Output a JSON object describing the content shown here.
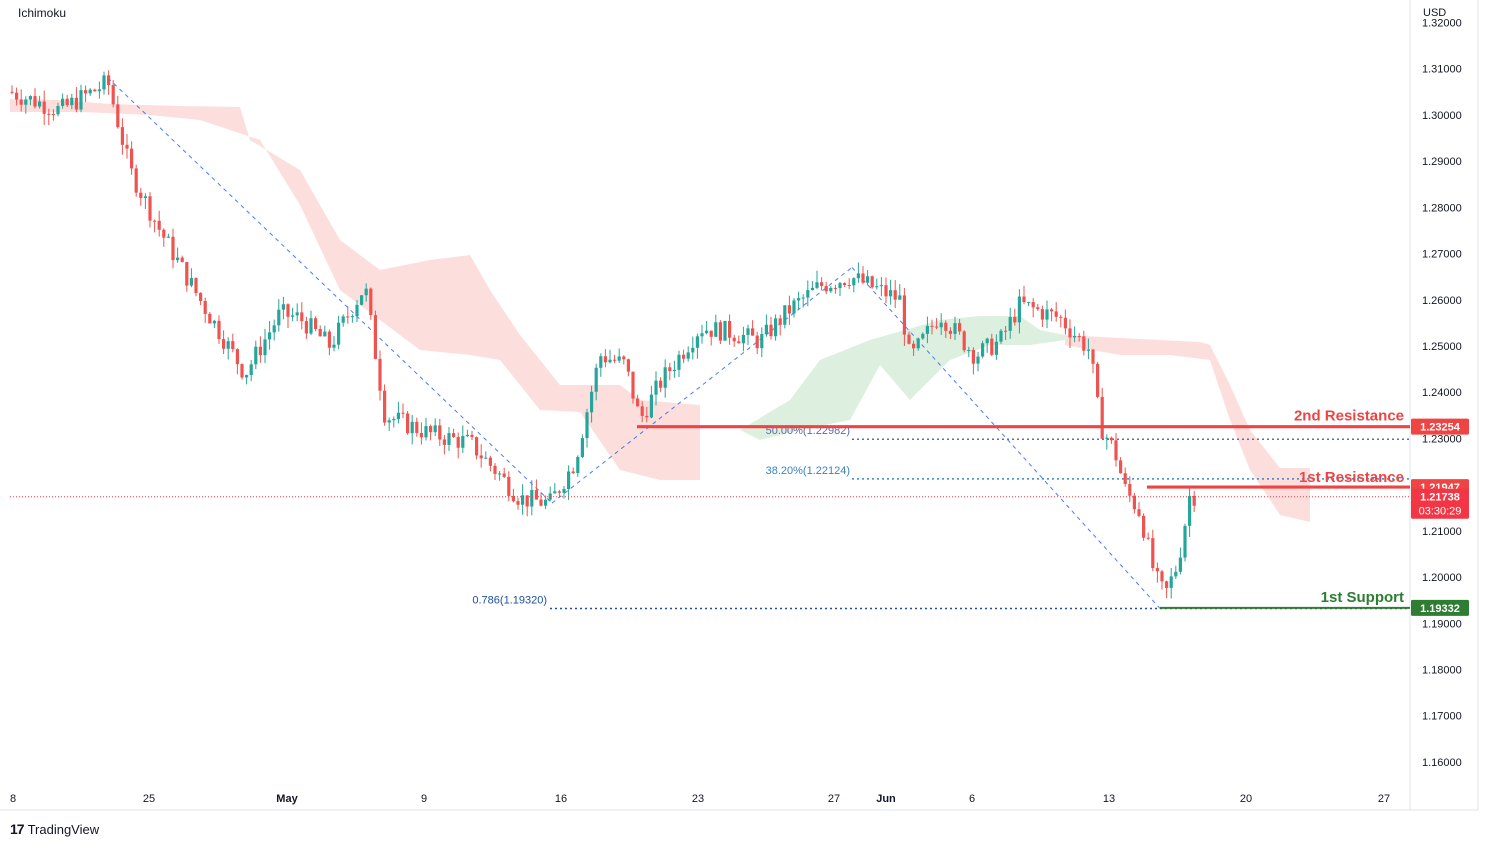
{
  "indicator_label": "Ichimoku",
  "currency": "USD",
  "brand": "TradingView",
  "brand_logo": "17",
  "chart_data": {
    "type": "candlestick",
    "ylim": [
      1.155,
      1.324
    ],
    "y_ticks": [
      "1.32000",
      "1.31000",
      "1.30000",
      "1.29000",
      "1.28000",
      "1.27000",
      "1.26000",
      "1.25000",
      "1.24000",
      "1.23000",
      "1.22000",
      "1.21000",
      "1.20000",
      "1.19000",
      "1.18000",
      "1.17000",
      "1.16000"
    ],
    "x_ticks": [
      {
        "label": "8",
        "bold": false
      },
      {
        "label": "25",
        "bold": false
      },
      {
        "label": "May",
        "bold": true
      },
      {
        "label": "9",
        "bold": false
      },
      {
        "label": "16",
        "bold": false
      },
      {
        "label": "23",
        "bold": false
      },
      {
        "label": "27",
        "bold": false
      },
      {
        "label": "Jun",
        "bold": true
      },
      {
        "label": "6",
        "bold": false
      },
      {
        "label": "13",
        "bold": false
      },
      {
        "label": "20",
        "bold": false
      },
      {
        "label": "27",
        "bold": false
      }
    ],
    "levels": [
      {
        "name": "2nd Resistance",
        "price": "1.23254",
        "value": 1.23254,
        "color": "#ef4444"
      },
      {
        "name": "1st Resistance",
        "price": "1.21947",
        "value": 1.21947,
        "color": "#ef4444"
      },
      {
        "name": "1st Support",
        "price": "1.19332",
        "value": 1.19332,
        "color": "#2e7d32"
      }
    ],
    "current_price": {
      "value": 1.21738,
      "label": "1.21738",
      "countdown": "03:30:29",
      "color": "#f23645"
    },
    "fib_labels": [
      {
        "text": "50.00%(1.22982)",
        "value": 1.22982,
        "color": "#5b6ea8"
      },
      {
        "text": "38.20%(1.22124)",
        "value": 1.22124,
        "color": "#3b82c4"
      },
      {
        "text": "0.786(1.19320)",
        "value": 1.1932,
        "color": "#1e4f9c"
      }
    ],
    "colors": {
      "up": "#26a69a",
      "down": "#ef5350",
      "cloud_bear": "#fcd9d7",
      "cloud_bull": "#d7ecd9",
      "fib": "#2962ff"
    }
  }
}
